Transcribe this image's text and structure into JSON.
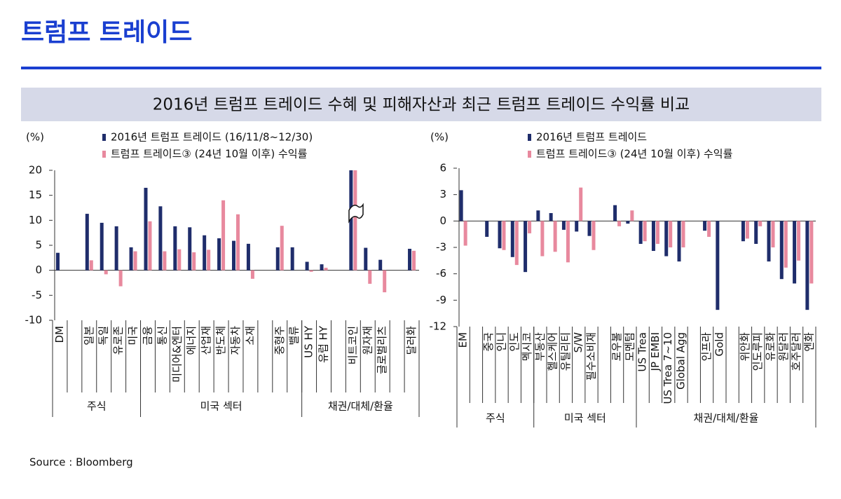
{
  "header": {
    "title": "트럼프 트레이드",
    "subtitle": "2016년 트럼프 트레이드 수혜 및 피해자산과 최근 트럼프 트레이드 수익률 비교"
  },
  "chart_data": [
    {
      "type": "bar",
      "y_label": "(%)",
      "ylim": [
        -10,
        20
      ],
      "yticks": [
        -10,
        -5,
        0,
        5,
        10,
        15,
        20
      ],
      "groups": [
        {
          "label": "주식",
          "categories": [
            "DM",
            null,
            "일본",
            "독일",
            "유로존",
            "미국"
          ]
        },
        {
          "label": "미국 섹터",
          "categories": [
            "금융",
            "통신",
            "미디어&엔터",
            "에너지",
            "산업재",
            "반도체",
            "자동차",
            "소재",
            null,
            "중형주",
            "밸류"
          ]
        },
        {
          "label": "채권/대체/환율",
          "categories": [
            "US HY",
            "유럽 HY",
            null,
            "비트코인",
            "원자재",
            "글로벌리츠",
            null,
            "달러화"
          ]
        }
      ],
      "series": [
        {
          "name": "2016년 트럼프 트레이드 (16/11/8~12/30)",
          "color": "#1f2d6b",
          "values": [
            3.5,
            null,
            11.3,
            9.5,
            8.8,
            4.6,
            16.5,
            12.8,
            8.8,
            8.6,
            7.0,
            6.4,
            5.9,
            5.3,
            null,
            4.6,
            4.6,
            1.7,
            1.2,
            null,
            20,
            4.5,
            2.1,
            null,
            4.3
          ]
        },
        {
          "name": "트럼프 트레이드③ (24년 10월 이후) 수익률",
          "color": "#e8899e",
          "values": [
            null,
            null,
            2.0,
            -0.8,
            -3.2,
            3.8,
            9.8,
            3.8,
            4.2,
            3.6,
            4.1,
            14.0,
            11.2,
            -1.7,
            null,
            8.9,
            null,
            -0.3,
            0.5,
            null,
            20,
            -2.7,
            -4.4,
            null,
            3.9
          ]
        }
      ]
    },
    {
      "type": "bar",
      "y_label": "(%)",
      "ylim": [
        -12,
        6
      ],
      "yticks": [
        -12,
        -9,
        -6,
        -3,
        0,
        3,
        6
      ],
      "groups": [
        {
          "label": "주식",
          "categories": [
            "EM",
            null,
            "중국",
            "인니",
            "인도",
            "멕시코"
          ]
        },
        {
          "label": "미국 섹터",
          "categories": [
            "부동산",
            "헬스케어",
            "유틸리티",
            "S/W",
            "필수소비재",
            null,
            "로우볼",
            "모멘텀"
          ]
        },
        {
          "label": "채권/대체/환율",
          "categories": [
            "US Trea",
            "JP EMBI",
            "US Trea 7~10",
            "Global Agg",
            null,
            "인프라",
            "Gold",
            null,
            "위안화",
            "인도루피",
            "유로화",
            "원달러",
            "호주달러",
            "엔화"
          ]
        }
      ],
      "series": [
        {
          "name": "2016년 트럼프 트레이드",
          "color": "#1f2d6b",
          "values": [
            3.5,
            null,
            -1.8,
            -3.1,
            -4.1,
            -5.8,
            1.2,
            0.9,
            -1.0,
            -1.2,
            -1.7,
            null,
            1.8,
            -0.3,
            -2.6,
            -3.4,
            -4.0,
            -4.6,
            null,
            -1.1,
            -10.1,
            null,
            -2.3,
            -2.6,
            -4.6,
            -6.6,
            -7.1,
            -10.1
          ]
        },
        {
          "name": "트럼프 트레이드③ (24년 10월 이후) 수익률",
          "color": "#e8899e",
          "values": [
            -2.8,
            null,
            null,
            -3.3,
            -5.0,
            -1.4,
            -4.0,
            -3.5,
            -4.7,
            3.8,
            -3.3,
            null,
            -0.6,
            1.2,
            -2.3,
            -2.6,
            -3.0,
            -3.0,
            null,
            -1.8,
            null,
            null,
            -2.0,
            -0.6,
            -3.0,
            -5.3,
            -4.5,
            -7.1
          ]
        }
      ]
    }
  ],
  "source": "Source : Bloomberg"
}
